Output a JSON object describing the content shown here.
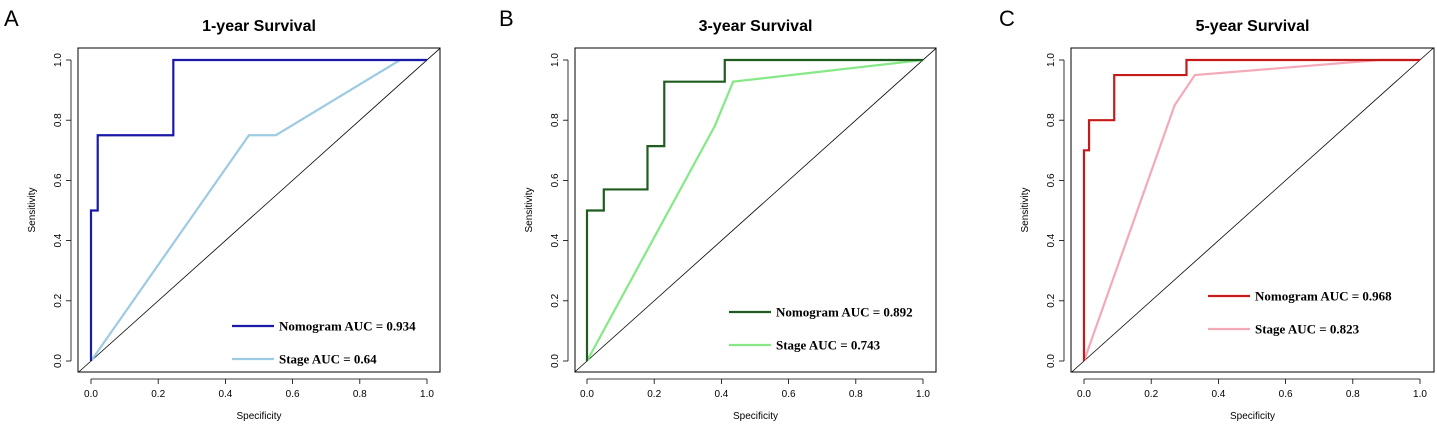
{
  "chart_data": [
    {
      "type": "line",
      "panel_letter": "A",
      "title": "1-year Survival",
      "xlabel": "Specificity",
      "ylabel": "Sensitivity",
      "xlim": [
        0,
        1
      ],
      "ylim": [
        0,
        1
      ],
      "x_ticks": [
        "0.0",
        "0.2",
        "0.4",
        "0.6",
        "0.8",
        "1.0"
      ],
      "y_ticks": [
        "0.0",
        "0.2",
        "0.4",
        "0.6",
        "0.8",
        "1.0"
      ],
      "reference_line": true,
      "legend_position": "bottom-right",
      "series": [
        {
          "name": "Nomogram",
          "label": "Nomogram AUC = 0.934",
          "color": "#1a1aa6",
          "x": [
            0,
            0,
            0.02,
            0.02,
            0.245,
            0.245,
            1.0
          ],
          "y": [
            0,
            0.5,
            0.5,
            0.75,
            0.75,
            1.0,
            1.0
          ]
        },
        {
          "name": "Stage",
          "label": "Stage AUC = 0.64",
          "color": "#9ccbe3",
          "x": [
            0,
            0.47,
            0.55,
            0.92,
            1.0
          ],
          "y": [
            0,
            0.75,
            0.75,
            1.0,
            1.0
          ]
        }
      ]
    },
    {
      "type": "line",
      "panel_letter": "B",
      "title": "3-year Survival",
      "xlabel": "Specificity",
      "ylabel": "Sensitivity",
      "xlim": [
        0,
        1
      ],
      "ylim": [
        0,
        1
      ],
      "x_ticks": [
        "0.0",
        "0.2",
        "0.4",
        "0.6",
        "0.8",
        "1.0"
      ],
      "y_ticks": [
        "0.0",
        "0.2",
        "0.4",
        "0.6",
        "0.8",
        "1.0"
      ],
      "reference_line": true,
      "legend_position": "bottom-right",
      "series": [
        {
          "name": "Nomogram",
          "label": "Nomogram AUC = 0.892",
          "color": "#1f5c1f",
          "x": [
            0,
            0,
            0.05,
            0.05,
            0.18,
            0.18,
            0.23,
            0.23,
            0.41,
            0.41,
            1.0
          ],
          "y": [
            0,
            0.5,
            0.5,
            0.57,
            0.57,
            0.714,
            0.714,
            0.928,
            0.928,
            1.0,
            1.0
          ]
        },
        {
          "name": "Stage",
          "label": "Stage AUC = 0.743",
          "color": "#86e886",
          "x": [
            0,
            0.38,
            0.435,
            1.0
          ],
          "y": [
            0,
            0.78,
            0.928,
            1.0
          ]
        }
      ]
    },
    {
      "type": "line",
      "panel_letter": "C",
      "title": "5-year Survival",
      "xlabel": "Specificity",
      "ylabel": "Sensitivity",
      "xlim": [
        0,
        1
      ],
      "ylim": [
        0,
        1
      ],
      "x_ticks": [
        "0.0",
        "0.2",
        "0.4",
        "0.6",
        "0.8",
        "1.0"
      ],
      "y_ticks": [
        "0.0",
        "0.2",
        "0.4",
        "0.6",
        "0.8",
        "1.0"
      ],
      "reference_line": true,
      "legend_position": "bottom-right",
      "series": [
        {
          "name": "Nomogram",
          "label": "Nomogram AUC = 0.968",
          "color": "#c41a1a",
          "x": [
            0,
            0,
            0.015,
            0.015,
            0.03,
            0.03,
            0.09,
            0.09,
            0.305,
            0.305,
            1.0
          ],
          "y": [
            0,
            0.7,
            0.7,
            0.8,
            0.8,
            0.8,
            0.8,
            0.95,
            0.95,
            1.0,
            1.0
          ]
        },
        {
          "name": "Stage",
          "label": "Stage AUC = 0.823",
          "color": "#f4a9b8",
          "x": [
            0,
            0.27,
            0.33,
            0.88,
            1.0
          ],
          "y": [
            0,
            0.85,
            0.95,
            1.0,
            1.0
          ]
        }
      ]
    }
  ]
}
